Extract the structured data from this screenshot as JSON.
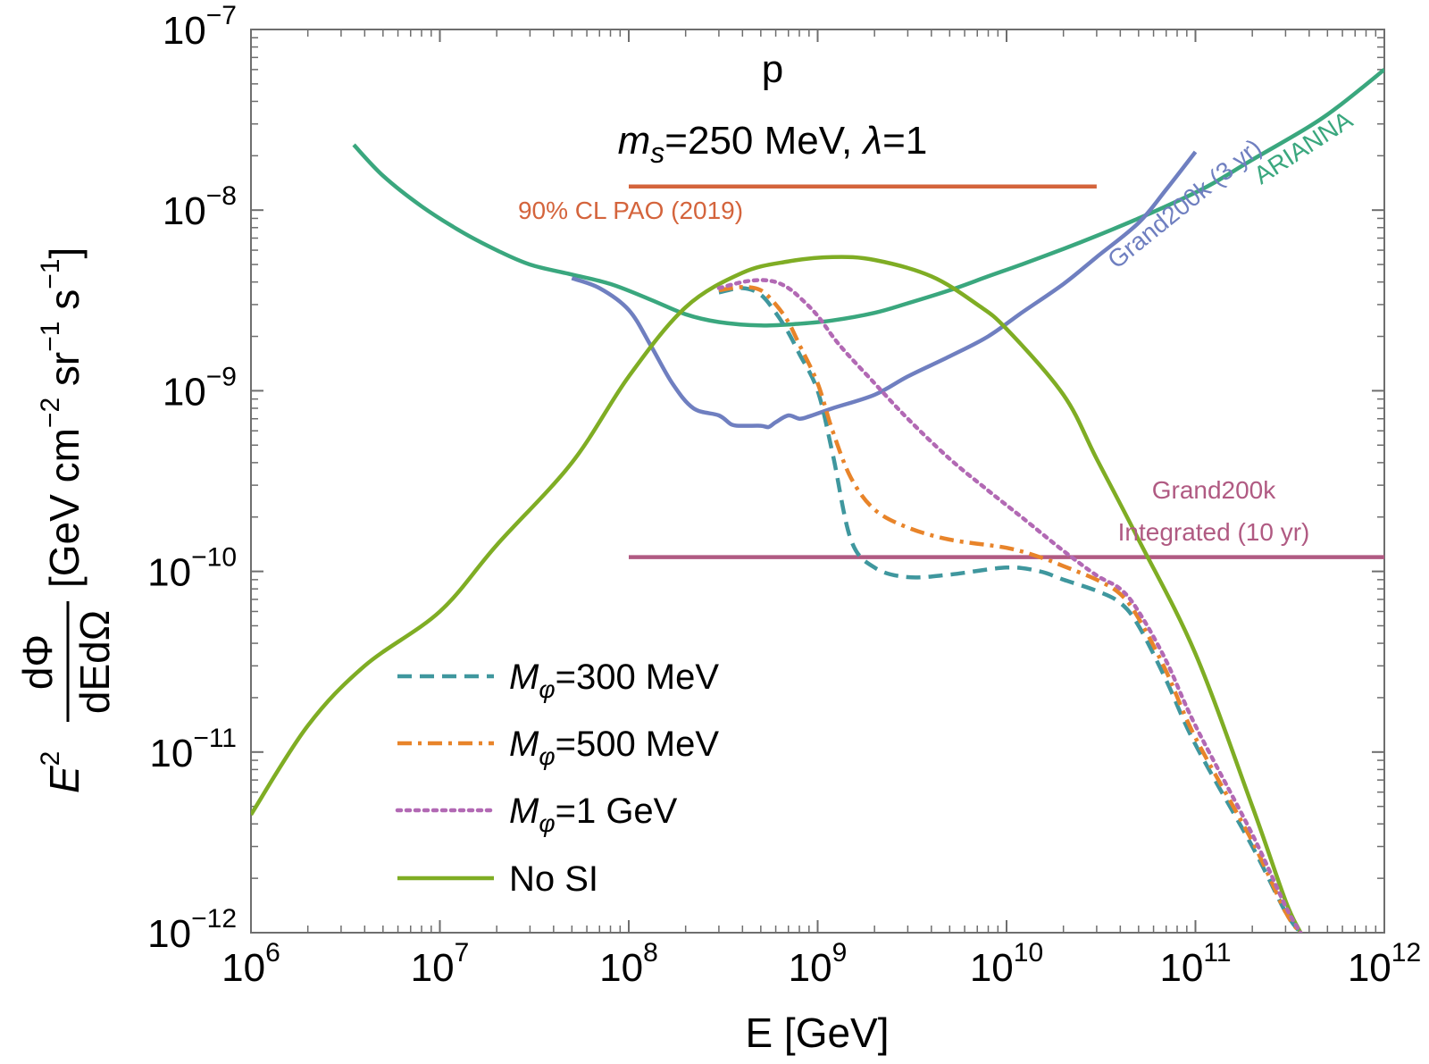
{
  "chart_data": {
    "type": "line",
    "title": "p",
    "subtitle": {
      "m_prefix": "m",
      "m_sub": "s",
      "rest": "=250 MeV, ",
      "lambda": "λ",
      "lambda_rest": "=1"
    },
    "xlabel": "E [GeV]",
    "ylabel": {
      "E": "E",
      "E_exp": "2",
      "frac_num": "dΦ",
      "frac_den": "dEdΩ",
      "units_pre": "[GeV cm",
      "cm_exp": "−2",
      "sr": " sr",
      "sr_exp": "−1",
      "s": " s",
      "s_exp": "−1",
      "units_post": "]"
    },
    "x_scale": "log",
    "y_scale": "log",
    "xlim": [
      1000000.0,
      1000000000000.0
    ],
    "ylim": [
      1e-12,
      1e-07
    ],
    "x_ticks": [
      {
        "value": 1000000.0,
        "base": "10",
        "exp": "6"
      },
      {
        "value": 10000000.0,
        "base": "10",
        "exp": "7"
      },
      {
        "value": 100000000.0,
        "base": "10",
        "exp": "8"
      },
      {
        "value": 1000000000.0,
        "base": "10",
        "exp": "9"
      },
      {
        "value": 10000000000.0,
        "base": "10",
        "exp": "10"
      },
      {
        "value": 100000000000.0,
        "base": "10",
        "exp": "11"
      },
      {
        "value": 1000000000000.0,
        "base": "10",
        "exp": "12"
      }
    ],
    "y_ticks": [
      {
        "value": 1e-12,
        "base": "10",
        "exp": "−12"
      },
      {
        "value": 1e-11,
        "base": "10",
        "exp": "−11"
      },
      {
        "value": 1e-10,
        "base": "10",
        "exp": "−10"
      },
      {
        "value": 1e-09,
        "base": "10",
        "exp": "−9"
      },
      {
        "value": 1e-08,
        "base": "10",
        "exp": "−8"
      },
      {
        "value": 1e-07,
        "base": "10",
        "exp": "−7"
      }
    ],
    "legend_position": "bottom-left",
    "series": [
      {
        "name": "ARIANNA",
        "color": "#3aa77e",
        "dash": "solid",
        "x": [
          3500000.0,
          5000000.0,
          8000000.0,
          13000000.0,
          20000000.0,
          30000000.0,
          50000000.0,
          80000000.0,
          130000000.0,
          200000000.0,
          300000000.0,
          500000000.0,
          800000000.0,
          1200000000.0,
          2000000000.0,
          3000000000.0,
          5000000000.0,
          8000000000.0,
          12000000000.0,
          20000000000.0,
          30000000000.0,
          50000000000.0,
          80000000000.0,
          120000000000.0,
          200000000000.0,
          400000000000.0,
          600000000000.0,
          1000000000000.0
        ],
        "y": [
          2.3e-08,
          1.55e-08,
          1.05e-08,
          7.6e-09,
          6e-09,
          5e-09,
          4.4e-09,
          3.9e-09,
          3.2e-09,
          2.65e-09,
          2.4e-09,
          2.3e-09,
          2.35e-09,
          2.45e-09,
          2.7e-09,
          3.05e-09,
          3.6e-09,
          4.3e-09,
          5e-09,
          6.1e-09,
          7.2e-09,
          9e-09,
          1.12e-08,
          1.38e-08,
          1.9e-08,
          2.9e-08,
          3.9e-08,
          6e-08
        ]
      },
      {
        "name": "Grand200k (3 yr)",
        "color": "#6f7fc0",
        "dash": "solid",
        "x": [
          50000000.0,
          70000000.0,
          100000000.0,
          130000000.0,
          170000000.0,
          220000000.0,
          300000000.0,
          350000000.0,
          400000000.0,
          500000000.0,
          550000000.0,
          600000000.0,
          700000000.0,
          800000000.0,
          900000000.0,
          1200000000.0,
          2000000000.0,
          3000000000.0,
          5000000000.0,
          8000000000.0,
          12000000000.0,
          20000000000.0,
          30000000000.0,
          50000000000.0,
          70000000000.0,
          100000000000.0
        ],
        "y": [
          4.2e-09,
          3.7e-09,
          2.8e-09,
          1.8e-09,
          1.1e-09,
          8e-10,
          7.3e-10,
          6.5e-10,
          6.4e-10,
          6.4e-10,
          6.3e-10,
          6.7e-10,
          7.3e-10,
          7e-10,
          7.2e-10,
          8e-10,
          9.5e-10,
          1.2e-09,
          1.55e-09,
          2e-09,
          2.7e-09,
          3.9e-09,
          5.5e-09,
          8.5e-09,
          1.3e-08,
          2.1e-08
        ]
      },
      {
        "name": "90% CL PAO (2019)",
        "color": "#d4643c",
        "dash": "solid",
        "x": [
          100000000.0,
          30000000000.0
        ],
        "y": [
          1.35e-08,
          1.35e-08
        ]
      },
      {
        "name": "Grand200k Integrated (10 yr)",
        "color": "#b05a82",
        "dash": "solid",
        "x": [
          100000000.0,
          1000000000000.0
        ],
        "y": [
          1.2e-10,
          1.2e-10
        ]
      },
      {
        "name": "No SI",
        "color": "#7fad24",
        "dash": "solid",
        "x": [
          1000000.0,
          2000000.0,
          4000000.0,
          10000000.0,
          20000000.0,
          50000000.0,
          100000000.0,
          200000000.0,
          400000000.0,
          700000000.0,
          1200000000.0,
          2000000000.0,
          4000000000.0,
          7000000000.0,
          10000000000.0,
          20000000000.0,
          30000000000.0,
          50000000000.0,
          100000000000.0,
          200000000000.0,
          300000000000.0,
          360000000000.0
        ],
        "y": [
          4.5e-12,
          1.4e-11,
          3e-11,
          6e-11,
          1.4e-10,
          4e-10,
          1.2e-09,
          2.9e-09,
          4.5e-09,
          5.2e-09,
          5.5e-09,
          5.3e-09,
          4.3e-09,
          3e-09,
          2.2e-09,
          9.5e-10,
          4.2e-10,
          1.5e-10,
          3.5e-11,
          5e-12,
          1.5e-12,
          1e-12
        ]
      },
      {
        "name": "Mφ=300 MeV",
        "color": "#3f979e",
        "dash": "dashed",
        "x": [
          300000000.0,
          400000000.0,
          500000000.0,
          600000000.0,
          700000000.0,
          800000000.0,
          1000000000.0,
          1200000000.0,
          1500000000.0,
          2000000000.0,
          3000000000.0,
          5000000000.0,
          10000000000.0,
          15000000000.0,
          20000000000.0,
          30000000000.0,
          40000000000.0,
          50000000000.0,
          70000000000.0,
          100000000000.0,
          200000000000.0,
          300000000000.0,
          360000000000.0
        ],
        "y": [
          3.5e-09,
          3.7e-09,
          3.4e-09,
          2.7e-09,
          2.1e-09,
          1.6e-09,
          1e-09,
          4.5e-10,
          1.5e-10,
          1.05e-10,
          9.3e-11,
          9.6e-11,
          1.05e-10,
          1e-10,
          9e-11,
          7.8e-11,
          6.7e-11,
          5e-11,
          2.5e-11,
          1.1e-11,
          3e-12,
          1.3e-12,
          1e-12
        ]
      },
      {
        "name": "Mφ=500 MeV",
        "color": "#e8842a",
        "dash": "dashdot",
        "x": [
          300000000.0,
          400000000.0,
          500000000.0,
          600000000.0,
          700000000.0,
          800000000.0,
          1000000000.0,
          1200000000.0,
          1500000000.0,
          2000000000.0,
          3000000000.0,
          5000000000.0,
          10000000000.0,
          15000000000.0,
          20000000000.0,
          30000000000.0,
          40000000000.0,
          50000000000.0,
          70000000000.0,
          100000000000.0,
          200000000000.0,
          300000000000.0,
          360000000000.0
        ],
        "y": [
          3.6e-09,
          3.75e-09,
          3.6e-09,
          3e-09,
          2.4e-09,
          1.8e-09,
          1.1e-09,
          6e-10,
          3.3e-10,
          2.2e-10,
          1.75e-10,
          1.5e-10,
          1.35e-10,
          1.2e-10,
          1.07e-10,
          9e-11,
          7.5e-11,
          5.5e-11,
          2.8e-11,
          1.2e-11,
          3.2e-12,
          1.3e-12,
          1e-12
        ]
      },
      {
        "name": "Mφ=1 GeV",
        "color": "#b269b4",
        "dash": "dotted",
        "x": [
          300000000.0,
          400000000.0,
          500000000.0,
          600000000.0,
          700000000.0,
          800000000.0,
          1000000000.0,
          1300000000.0,
          2000000000.0,
          3000000000.0,
          5000000000.0,
          8000000000.0,
          12000000000.0,
          20000000000.0,
          30000000000.0,
          40000000000.0,
          50000000000.0,
          70000000000.0,
          100000000000.0,
          200000000000.0,
          300000000000.0,
          360000000000.0
        ],
        "y": [
          3.7e-09,
          4e-09,
          4.1e-09,
          4e-09,
          3.7e-09,
          3.3e-09,
          2.6e-09,
          1.8e-09,
          1.1e-09,
          7e-10,
          4.2e-10,
          2.8e-10,
          2e-10,
          1.3e-10,
          9.5e-11,
          8e-11,
          6e-11,
          3.2e-11,
          1.4e-11,
          3.5e-12,
          1.4e-12,
          1e-12
        ]
      }
    ],
    "annotations": {
      "pao_label": "90% CL PAO (2019)",
      "grand_int_line1": "Grand200k",
      "grand_int_line2": "Integrated (10 yr)",
      "grand3_label": "Grand200k (3 yr)",
      "arianna_label": "ARIANNA"
    },
    "legend": [
      {
        "series": "Mφ=300 MeV",
        "M": "M",
        "sub": "φ",
        "rest": "=300 MeV"
      },
      {
        "series": "Mφ=500 MeV",
        "M": "M",
        "sub": "φ",
        "rest": "=500 MeV"
      },
      {
        "series": "Mφ=1 GeV",
        "M": "M",
        "sub": "φ",
        "rest": "=1 GeV"
      },
      {
        "series": "No SI",
        "M": "",
        "sub": "",
        "rest": "No SI"
      }
    ]
  }
}
